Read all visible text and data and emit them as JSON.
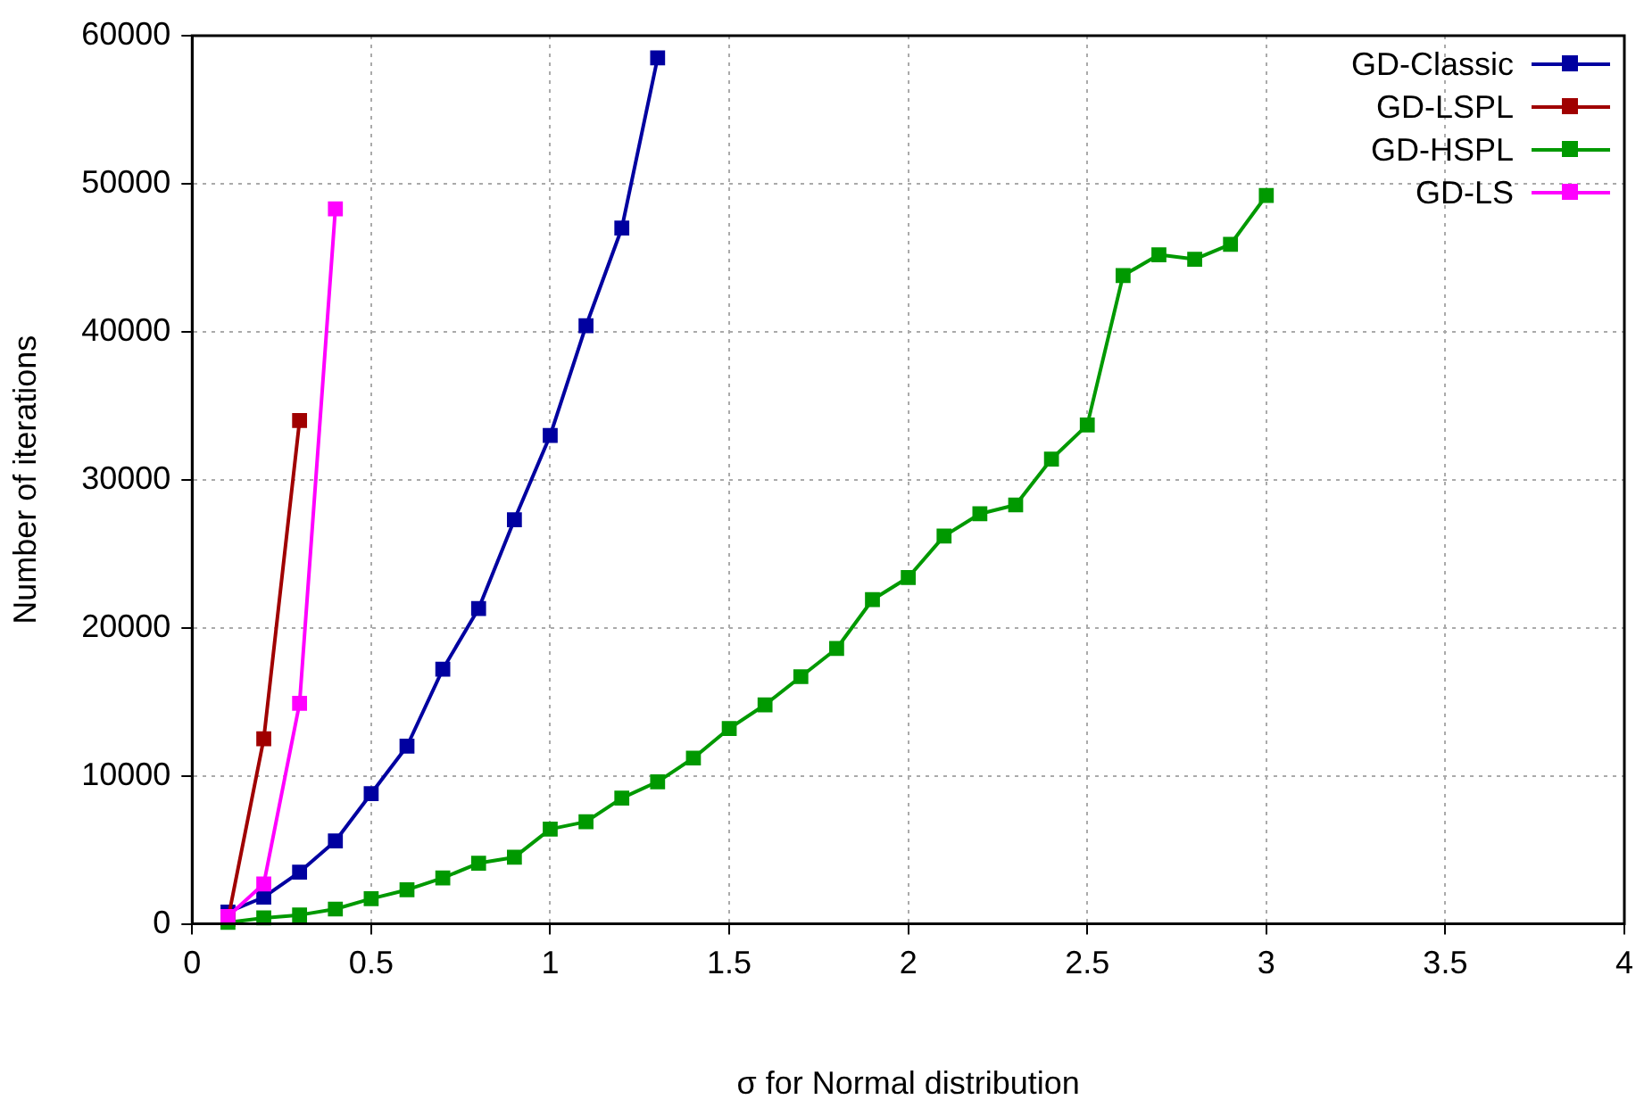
{
  "chart_data": {
    "type": "line",
    "xlabel": "σ for Normal distribution",
    "ylabel": "Number of iterations",
    "xlim": [
      0,
      4
    ],
    "xticks": [
      0,
      0.5,
      1,
      1.5,
      2,
      2.5,
      3,
      3.5,
      4
    ],
    "ylim": [
      0,
      60000
    ],
    "yticks": [
      0,
      10000,
      20000,
      30000,
      40000,
      50000,
      60000
    ],
    "grid": true,
    "legend": "top right",
    "marker": "square",
    "line_style": "solid",
    "series": [
      {
        "name": "GD-Classic",
        "color": "#0000a0",
        "x": [
          0.1,
          0.2,
          0.3,
          0.4,
          0.5,
          0.6,
          0.7,
          0.8,
          0.9,
          1.0,
          1.1,
          1.2,
          1.3
        ],
        "values": [
          800,
          1800,
          3500,
          5600,
          8800,
          12000,
          17200,
          21300,
          27300,
          33000,
          40400,
          47000,
          58500
        ]
      },
      {
        "name": "GD-LSPL",
        "color": "#a00000",
        "x": [
          0.1,
          0.2,
          0.3
        ],
        "values": [
          300,
          12500,
          34000
        ]
      },
      {
        "name": "GD-HSPL",
        "color": "#009900",
        "x": [
          0.1,
          0.2,
          0.3,
          0.4,
          0.5,
          0.6,
          0.7,
          0.8,
          0.9,
          1.0,
          1.1,
          1.2,
          1.3,
          1.4,
          1.5,
          1.6,
          1.7,
          1.8,
          1.9,
          2.0,
          2.1,
          2.2,
          2.3,
          2.4,
          2.5,
          2.6,
          2.7,
          2.8,
          2.9,
          3.0
        ],
        "values": [
          100,
          400,
          600,
          1000,
          1700,
          2300,
          3100,
          4100,
          4500,
          6400,
          6900,
          8500,
          9600,
          11200,
          13200,
          14800,
          16700,
          18600,
          21900,
          23400,
          26200,
          27700,
          28300,
          31400,
          33700,
          43800,
          45200,
          44900,
          45900,
          49200
        ]
      },
      {
        "name": "GD-LS",
        "color": "#ff00ff",
        "x": [
          0.1,
          0.2,
          0.3,
          0.4
        ],
        "values": [
          500,
          2700,
          14900,
          48300
        ]
      }
    ]
  }
}
